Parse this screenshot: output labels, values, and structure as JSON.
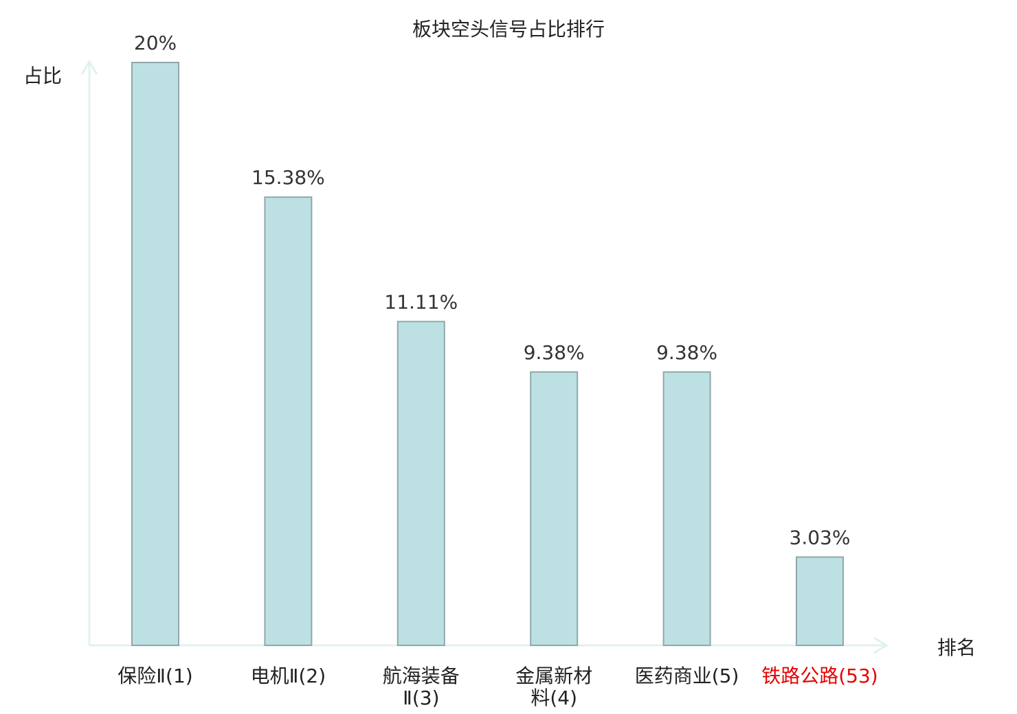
{
  "chart_data": {
    "type": "bar",
    "title": "板块空头信号占比排行",
    "ylabel": "占比",
    "xlabel": "排名",
    "categories": [
      {
        "lines": [
          "保险Ⅱ(1)"
        ],
        "highlight": false
      },
      {
        "lines": [
          "电机Ⅱ(2)"
        ],
        "highlight": false
      },
      {
        "lines": [
          "航海装备",
          "Ⅱ(3)"
        ],
        "highlight": false
      },
      {
        "lines": [
          "金属新材",
          "料(4)"
        ],
        "highlight": false
      },
      {
        "lines": [
          "医药商业(5)"
        ],
        "highlight": false
      },
      {
        "lines": [
          "铁路公路(53)"
        ],
        "highlight": true
      }
    ],
    "values": [
      20,
      15.38,
      11.11,
      9.38,
      9.38,
      3.03
    ],
    "value_labels": [
      "20%",
      "15.38%",
      "11.11%",
      "9.38%",
      "9.38%",
      "3.03%"
    ],
    "ylim": [
      0,
      20
    ],
    "grid": false,
    "colors": {
      "bar_fill": "#bde0e3",
      "bar_stroke": "#8fa8aa",
      "axis": "#e0f2f0",
      "highlight_text": "#e60000"
    }
  }
}
